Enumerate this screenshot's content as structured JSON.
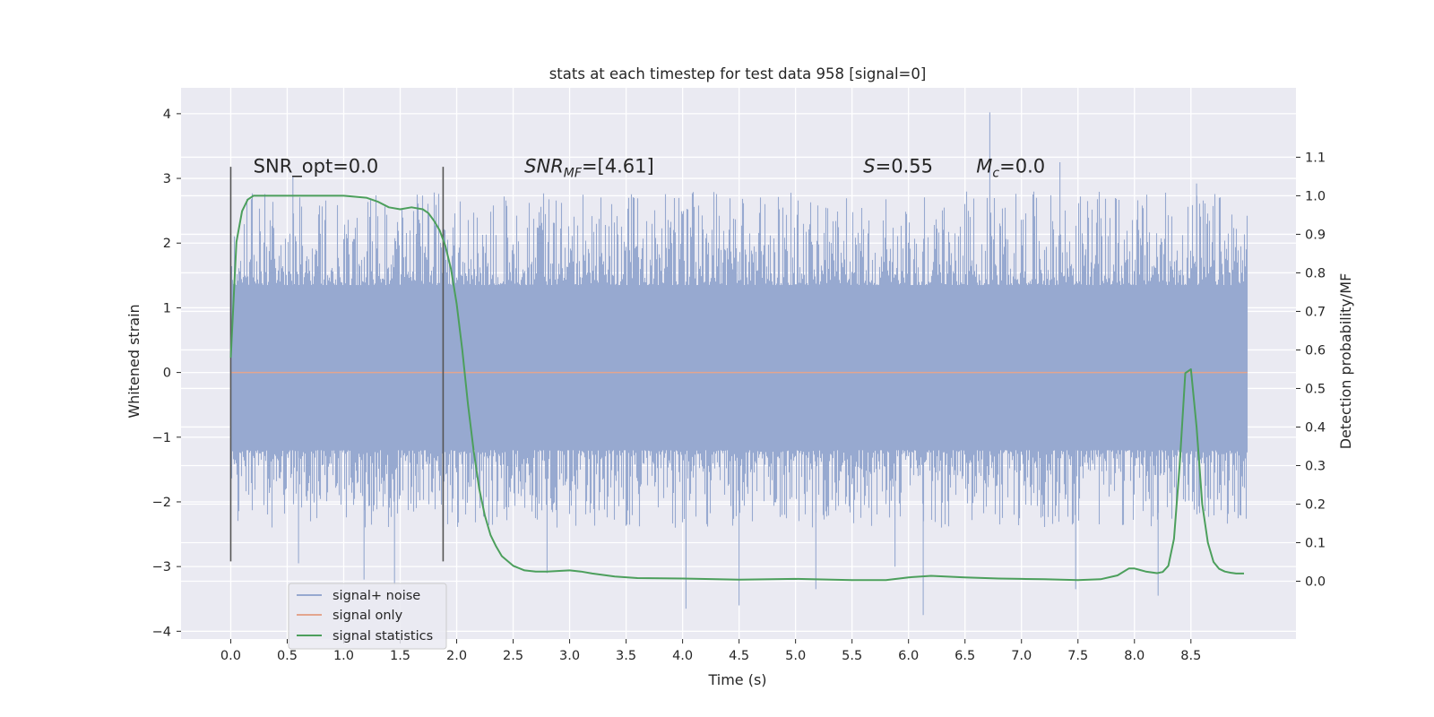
{
  "chart_data": {
    "type": "line",
    "title": "stats at each timestep for test data 958 [signal=0]",
    "xlabel": "Time (s)",
    "ylabel": "Whitened strain",
    "y2label": "Detection probability/MF",
    "xlim": [
      -0.44,
      9.43
    ],
    "ylim": [
      -4.12,
      4.4
    ],
    "y2lim": [
      -0.15,
      1.28
    ],
    "xticks": [
      "0.0",
      "0.5",
      "1.0",
      "1.5",
      "2.0",
      "2.5",
      "3.0",
      "3.5",
      "4.0",
      "4.5",
      "5.0",
      "5.5",
      "6.0",
      "6.5",
      "7.0",
      "7.5",
      "8.0",
      "8.5"
    ],
    "yticks": [
      "−4",
      "−3",
      "−2",
      "−1",
      "0",
      "1",
      "2",
      "3",
      "4"
    ],
    "y2ticks": [
      "0.0",
      "0.1",
      "0.2",
      "0.3",
      "0.4",
      "0.5",
      "0.6",
      "0.7",
      "0.8",
      "0.9",
      "1.0",
      "1.1"
    ],
    "grid": true,
    "legend_position": "lower-left",
    "annotations": [
      {
        "id": "snr-opt",
        "x": 0.2,
        "y": 3.2,
        "text": "SNR_opt=0.0"
      },
      {
        "id": "snr-mf",
        "x": 2.6,
        "y": 3.2,
        "text": "SNR_MF=[4.61]"
      },
      {
        "id": "s-val",
        "x": 5.6,
        "y": 3.2,
        "text": "S=0.55"
      },
      {
        "id": "mc-val",
        "x": 6.6,
        "y": 3.2,
        "text": "M_c=0.0"
      }
    ],
    "vlines": [
      {
        "x": 0.0,
        "y_range": [
          -2.92,
          3.18
        ],
        "color": "#555555"
      },
      {
        "x": 1.88,
        "y_range": [
          -2.92,
          3.18
        ],
        "color": "#555555"
      }
    ],
    "noise": {
      "x_range": [
        0.0,
        9.0
      ],
      "typical_band": [
        -1.2,
        1.35
      ],
      "approx_envelope_max": 2.8,
      "approx_envelope_min": -2.4,
      "extremes": [
        {
          "x": 6.72,
          "y": 4.02
        },
        {
          "x": 7.34,
          "y": 3.25
        },
        {
          "x": 8.55,
          "y": 2.92
        },
        {
          "x": 0.55,
          "y": 3.02
        },
        {
          "x": 1.45,
          "y": -3.28
        },
        {
          "x": 1.18,
          "y": -3.2
        },
        {
          "x": 4.03,
          "y": -3.65
        },
        {
          "x": 6.13,
          "y": -3.75
        },
        {
          "x": 5.18,
          "y": -3.35
        },
        {
          "x": 8.21,
          "y": -3.45
        },
        {
          "x": 4.5,
          "y": -3.6
        },
        {
          "x": 7.48,
          "y": -3.35
        },
        {
          "x": 0.6,
          "y": -2.95
        },
        {
          "x": 2.8,
          "y": -3.1
        },
        {
          "x": 5.88,
          "y": -3.0
        }
      ]
    },
    "series": [
      {
        "name": "signal+ noise",
        "color": "#97a9d0",
        "axis": "left",
        "render": "dense-noise"
      },
      {
        "name": "signal only",
        "color": "#e3a58e",
        "axis": "left",
        "x": [
          0.0,
          9.0
        ],
        "y": [
          0.0,
          0.0
        ]
      },
      {
        "name": "signal statistics",
        "color": "#4c9f5c",
        "axis": "right",
        "x": [
          0.0,
          0.05,
          0.1,
          0.15,
          0.2,
          0.3,
          0.5,
          0.8,
          1.0,
          1.2,
          1.3,
          1.4,
          1.5,
          1.6,
          1.7,
          1.75,
          1.8,
          1.85,
          1.9,
          1.95,
          2.0,
          2.05,
          2.1,
          2.15,
          2.2,
          2.25,
          2.3,
          2.35,
          2.4,
          2.5,
          2.6,
          2.7,
          2.8,
          3.0,
          3.1,
          3.2,
          3.4,
          3.6,
          4.0,
          4.5,
          5.0,
          5.5,
          5.8,
          6.0,
          6.2,
          6.5,
          6.8,
          7.0,
          7.2,
          7.5,
          7.7,
          7.85,
          7.95,
          8.0,
          8.1,
          8.2,
          8.25,
          8.3,
          8.35,
          8.4,
          8.45,
          8.5,
          8.55,
          8.6,
          8.65,
          8.7,
          8.75,
          8.8,
          8.85,
          8.9,
          8.97
        ],
        "y": [
          0.58,
          0.88,
          0.96,
          0.99,
          1.0,
          1.0,
          1.0,
          1.0,
          1.0,
          0.995,
          0.985,
          0.97,
          0.965,
          0.97,
          0.965,
          0.955,
          0.935,
          0.91,
          0.87,
          0.81,
          0.72,
          0.6,
          0.46,
          0.34,
          0.24,
          0.17,
          0.12,
          0.09,
          0.065,
          0.04,
          0.028,
          0.025,
          0.025,
          0.028,
          0.025,
          0.02,
          0.012,
          0.008,
          0.007,
          0.004,
          0.006,
          0.003,
          0.003,
          0.01,
          0.014,
          0.01,
          0.007,
          0.006,
          0.005,
          0.003,
          0.005,
          0.015,
          0.033,
          0.033,
          0.025,
          0.021,
          0.024,
          0.04,
          0.11,
          0.3,
          0.54,
          0.55,
          0.4,
          0.2,
          0.1,
          0.05,
          0.032,
          0.025,
          0.022,
          0.02,
          0.02
        ]
      }
    ]
  }
}
